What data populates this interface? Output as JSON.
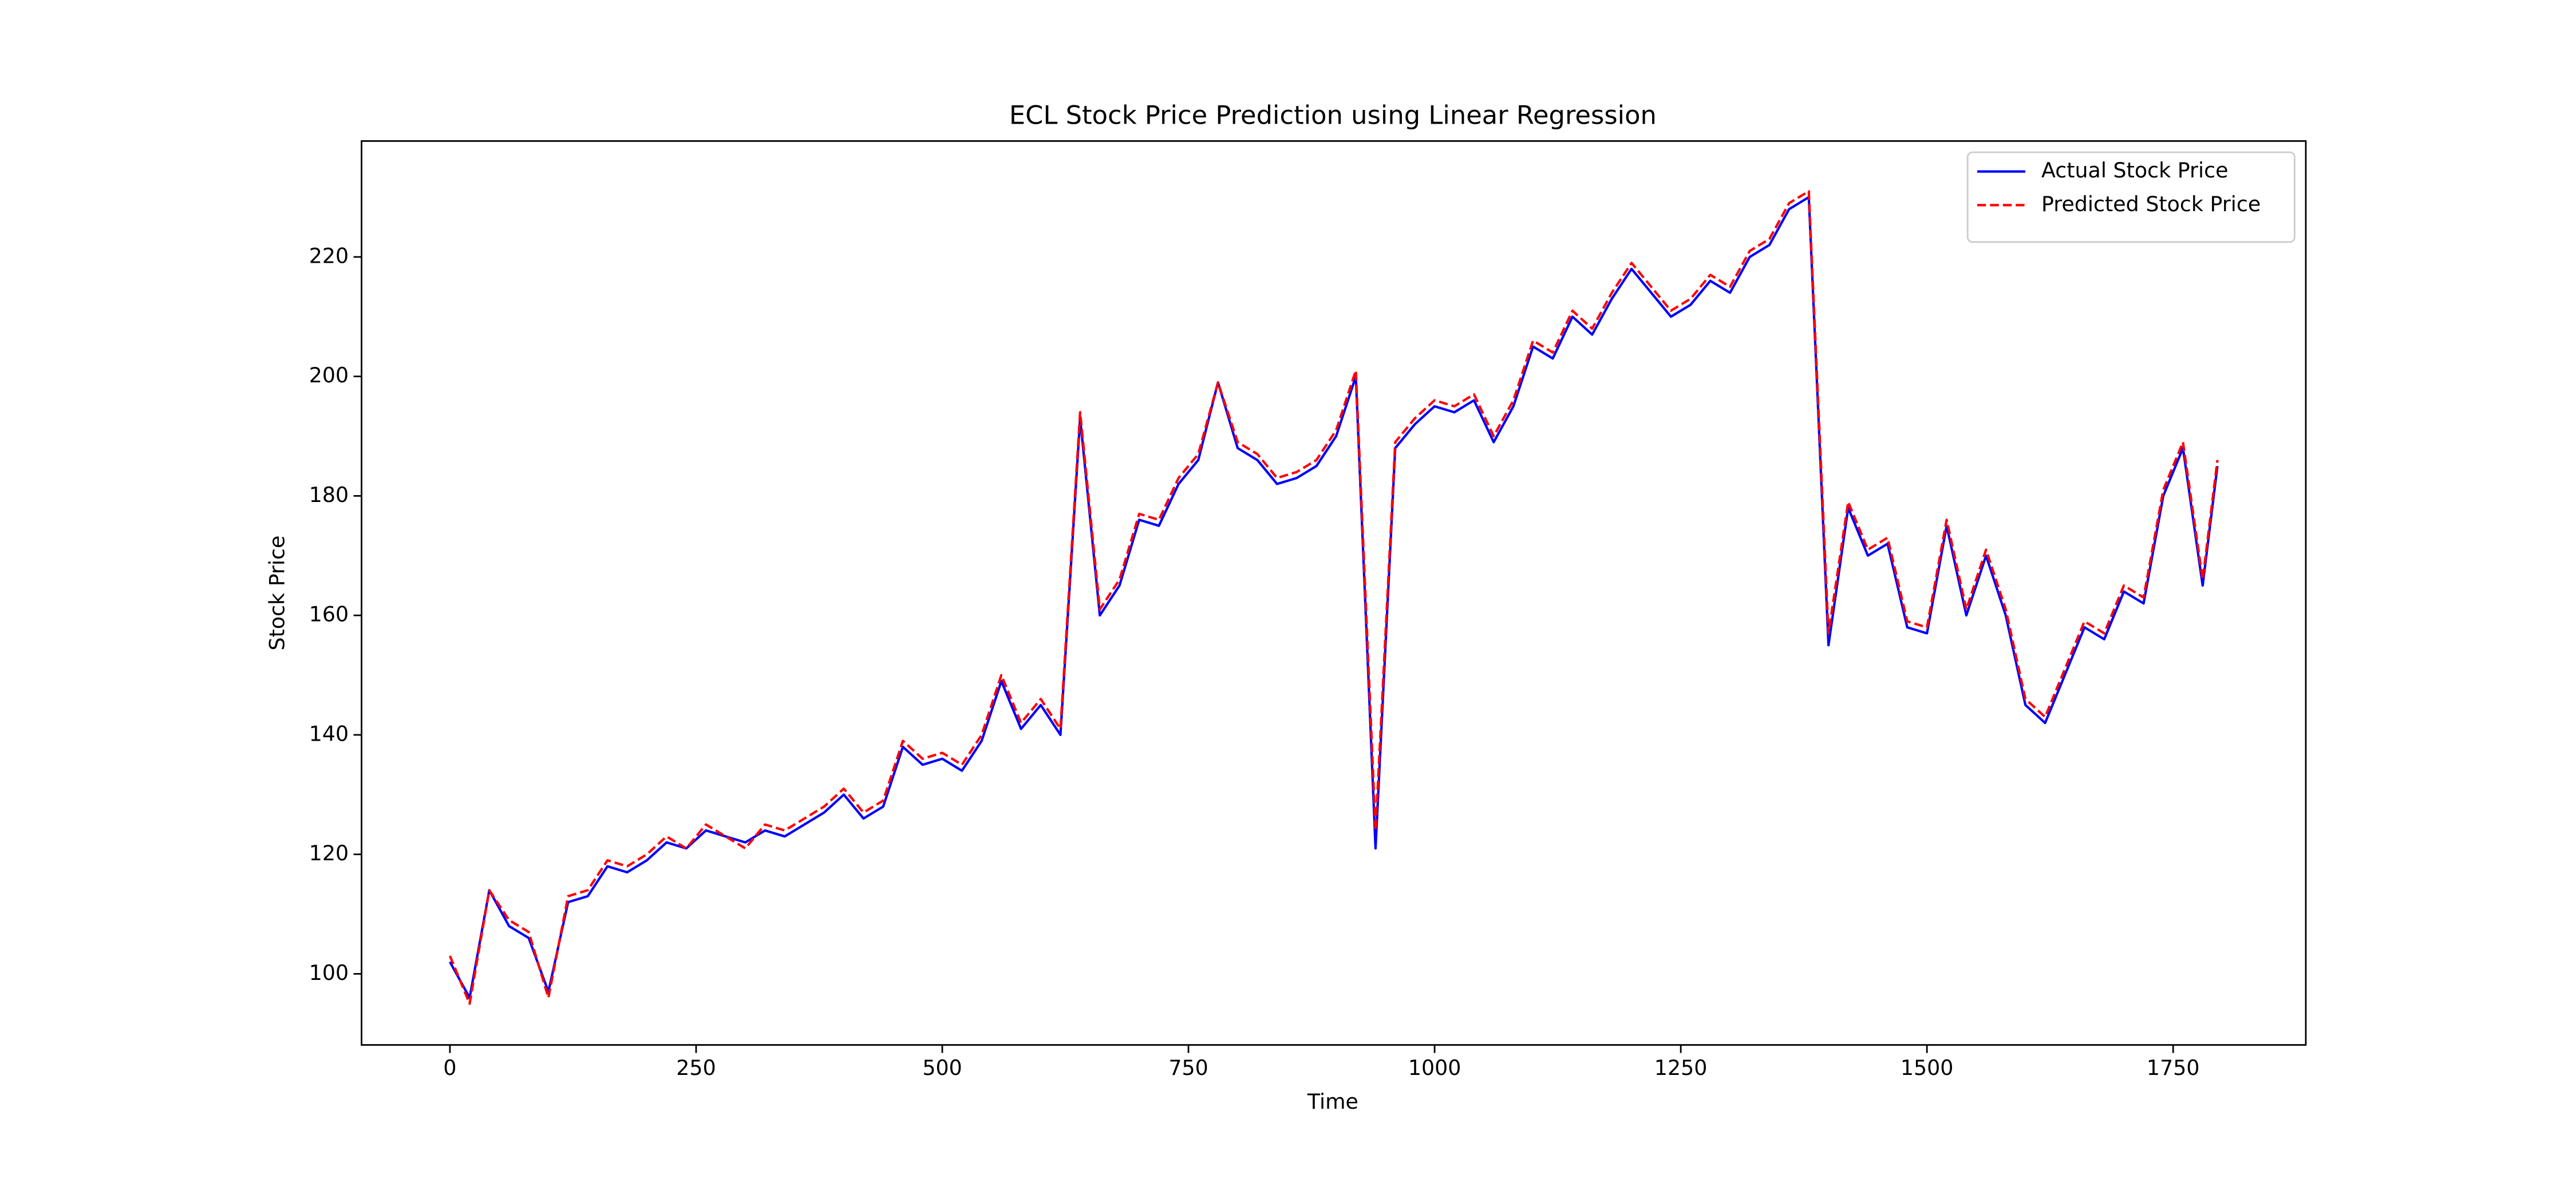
{
  "chart_data": {
    "type": "line",
    "title": "ECL Stock Price Prediction using Linear Regression",
    "xlabel": "Time",
    "ylabel": "Stock Price",
    "x": [
      0,
      20,
      40,
      60,
      80,
      100,
      120,
      140,
      160,
      180,
      200,
      220,
      240,
      260,
      280,
      300,
      320,
      340,
      360,
      380,
      400,
      420,
      440,
      460,
      480,
      500,
      520,
      540,
      560,
      580,
      600,
      620,
      640,
      660,
      680,
      700,
      720,
      740,
      760,
      780,
      800,
      820,
      840,
      860,
      880,
      900,
      920,
      940,
      960,
      980,
      1000,
      1020,
      1040,
      1060,
      1080,
      1100,
      1120,
      1140,
      1160,
      1180,
      1200,
      1220,
      1240,
      1260,
      1280,
      1300,
      1320,
      1340,
      1360,
      1380,
      1400,
      1420,
      1440,
      1460,
      1480,
      1500,
      1520,
      1540,
      1560,
      1580,
      1600,
      1620,
      1640,
      1660,
      1680,
      1700,
      1720,
      1740,
      1760,
      1780,
      1795
    ],
    "series": [
      {
        "name": "Actual Stock Price",
        "color": "#0000ff",
        "linestyle": "solid",
        "values": [
          102,
          96,
          114,
          108,
          106,
          97,
          112,
          113,
          118,
          117,
          119,
          122,
          121,
          124,
          123,
          122,
          124,
          123,
          125,
          127,
          130,
          126,
          128,
          138,
          135,
          136,
          134,
          139,
          149,
          141,
          145,
          140,
          193,
          160,
          165,
          176,
          175,
          182,
          186,
          199,
          188,
          186,
          182,
          183,
          185,
          190,
          200,
          121,
          188,
          192,
          195,
          194,
          196,
          189,
          195,
          205,
          203,
          210,
          207,
          213,
          218,
          214,
          210,
          212,
          216,
          214,
          220,
          222,
          228,
          230,
          155,
          178,
          170,
          172,
          158,
          157,
          175,
          160,
          170,
          160,
          145,
          142,
          150,
          158,
          156,
          164,
          162,
          180,
          188,
          165,
          185
        ]
      },
      {
        "name": "Predicted Stock Price",
        "color": "#ff0000",
        "linestyle": "dashed",
        "values": [
          103,
          95,
          114,
          109,
          107,
          96,
          113,
          114,
          119,
          118,
          120,
          123,
          121,
          125,
          123,
          121,
          125,
          124,
          126,
          128,
          131,
          127,
          129,
          139,
          136,
          137,
          135,
          140,
          150,
          142,
          146,
          141,
          194,
          161,
          166,
          177,
          176,
          183,
          187,
          199,
          189,
          187,
          183,
          184,
          186,
          191,
          201,
          124,
          189,
          193,
          196,
          195,
          197,
          190,
          196,
          206,
          204,
          211,
          208,
          214,
          219,
          215,
          211,
          213,
          217,
          215,
          221,
          223,
          229,
          231,
          157,
          179,
          171,
          173,
          159,
          158,
          176,
          161,
          171,
          161,
          146,
          143,
          151,
          159,
          157,
          165,
          163,
          181,
          189,
          166,
          186
        ]
      }
    ],
    "xlim": [
      -89.75,
      1884.75
    ],
    "ylim": [
      88.1,
      239.4
    ],
    "xticks": [
      0,
      250,
      500,
      750,
      1000,
      1250,
      1500,
      1750
    ],
    "yticks": [
      100,
      120,
      140,
      160,
      180,
      200,
      220
    ],
    "grid": false,
    "legend": "upper right"
  }
}
